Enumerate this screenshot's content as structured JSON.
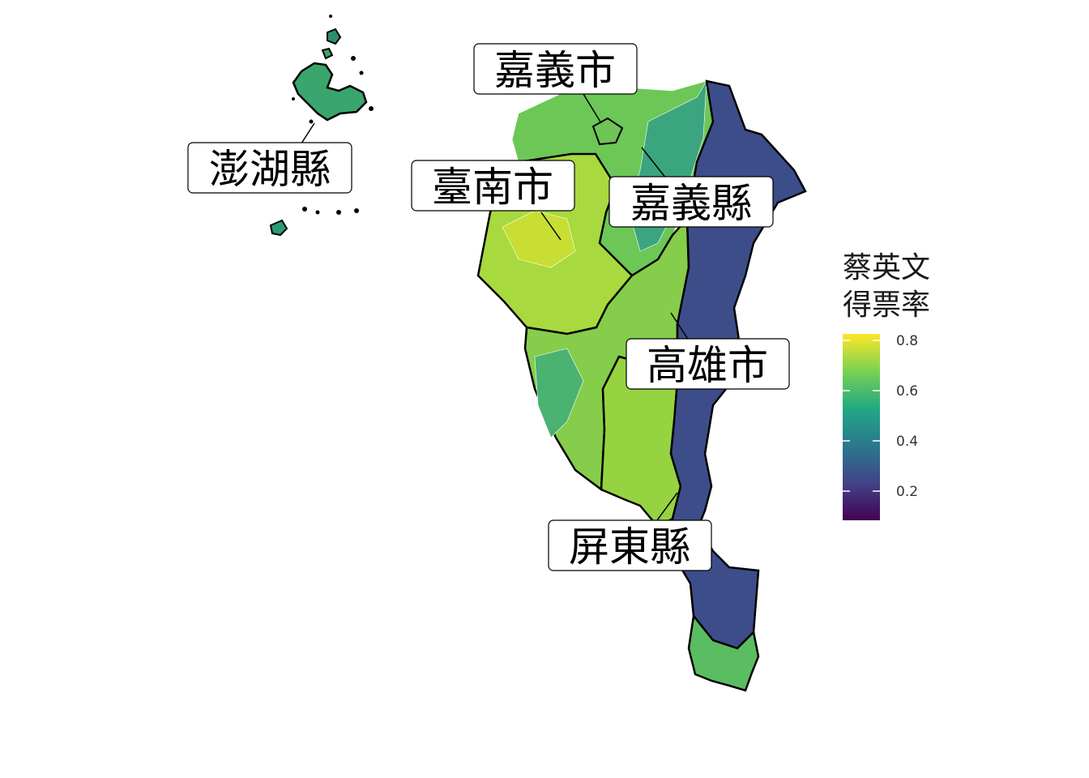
{
  "legend": {
    "title_line1": "蔡英文",
    "title_line2": "得票率",
    "ticks": [
      "0.8",
      "0.6",
      "0.4",
      "0.2"
    ],
    "colors": [
      "#fde725",
      "#7ad151",
      "#22a884",
      "#2a788e",
      "#414487",
      "#440154"
    ]
  },
  "labels": {
    "chiayi_city": "嘉義市",
    "penghu": "澎湖縣",
    "tainan": "臺南市",
    "chiayi_county": "嘉義縣",
    "kaohsiung": "高雄市",
    "pingtung": "屏東縣"
  },
  "map_data": {
    "variable": "蔡英文得票率",
    "scale_range": [
      0.08,
      0.83
    ],
    "regions": [
      {
        "name": "嘉義市",
        "share": 0.6
      },
      {
        "name": "澎湖縣",
        "share": 0.55
      },
      {
        "name": "臺南市",
        "share": 0.7
      },
      {
        "name": "嘉義縣",
        "share": 0.62
      },
      {
        "name": "高雄市",
        "share": 0.63
      },
      {
        "name": "屏東縣",
        "share": 0.64
      },
      {
        "name": "mountain-east",
        "share": 0.25
      }
    ]
  }
}
